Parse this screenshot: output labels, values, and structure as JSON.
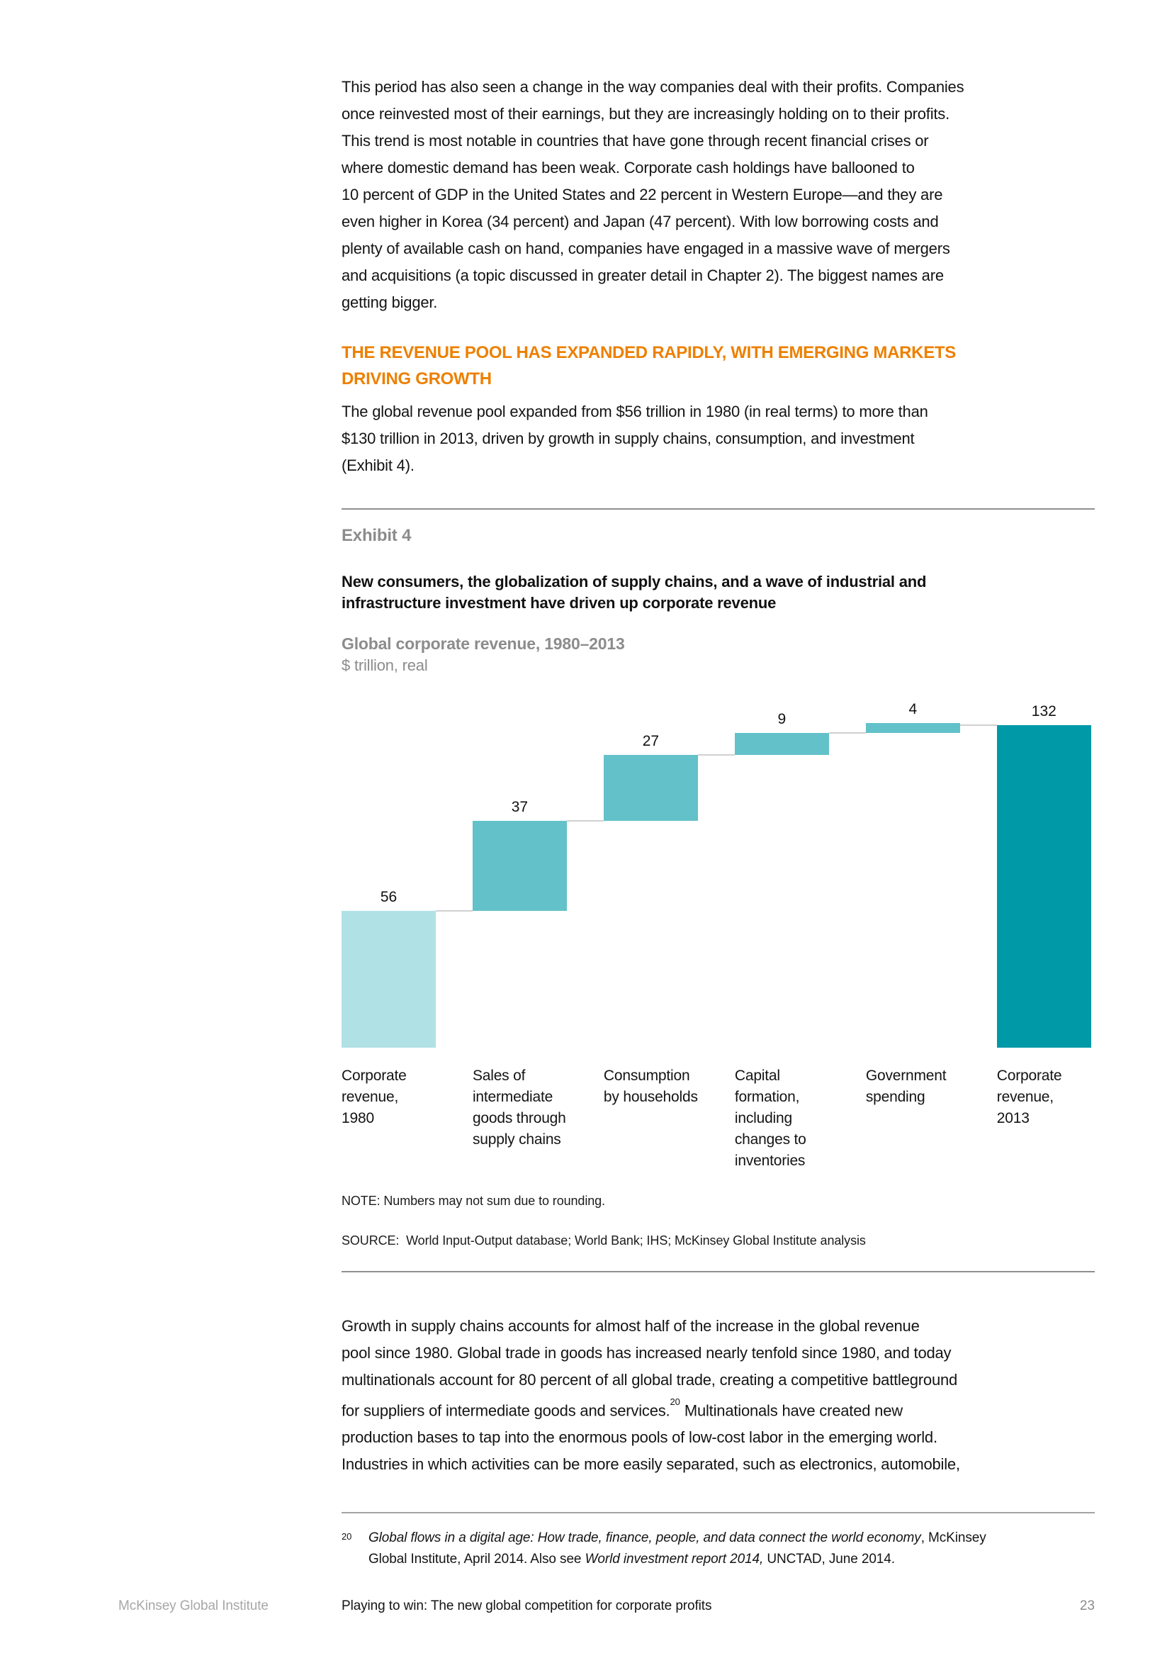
{
  "body": {
    "para1": "This period has also seen a change in the way companies deal with their profits. Companies\nonce reinvested most of their earnings, but they are increasingly holding on to their profits.\nThis trend is most notable in countries that have gone through recent financial crises or\nwhere domestic demand has been weak. Corporate cash holdings have ballooned to\n10 percent of GDP in the United States and 22 percent in Western Europe—and they are\neven higher in Korea (34 percent) and Japan (47 percent). With low borrowing costs and\nplenty of available cash on hand, companies have engaged in a massive wave of mergers\nand acquisitions (a topic discussed in greater detail in Chapter 2). The biggest names are\ngetting bigger.",
    "heading": "THE REVENUE POOL HAS EXPANDED RAPIDLY, WITH EMERGING MARKETS\nDRIVING GROWTH",
    "para2": "The global revenue pool expanded from $56 trillion in 1980 (in real terms) to more than\n$130 trillion in 2013, driven by growth in supply chains, consumption, and investment\n(Exhibit 4).",
    "para3_before": "Growth in supply chains accounts for almost half of the increase in the global revenue\npool since 1980. Global trade in goods has increased nearly tenfold since 1980, and today\nmultinationals account for 80 percent of all global trade, creating a competitive battleground\nfor suppliers of intermediate goods and services.",
    "para3_sup": "20",
    "para3_after": " Multinationals have created new\nproduction bases to tap into the enormous pools of low-cost labor in the emerging world.\nIndustries in which activities can be more easily separated, such as electronics, automobile,"
  },
  "exhibit": {
    "label": "Exhibit 4",
    "title": "New consumers, the globalization of supply chains, and a wave of industrial and\ninfrastructure investment have driven up corporate revenue",
    "subtitle_bold": "Global corporate revenue, 1980–2013",
    "subtitle_unit": "$ trillion, real",
    "note": "NOTE: Numbers may not sum due to rounding.",
    "source": "SOURCE:  World Input-Output database; World Bank; IHS; McKinsey Global Institute analysis"
  },
  "chart_data": {
    "type": "bar",
    "subtype": "waterfall",
    "title": "Global corporate revenue, 1980–2013",
    "ylabel": "$ trillion, real",
    "categories": [
      "Corporate\nrevenue,\n1980",
      "Sales of\nintermediate\ngoods through\nsupply chains",
      "Consumption\nby households",
      "Capital\nformation,\nincluding\nchanges to\ninventories",
      "Government\nspending",
      "Corporate\nrevenue,\n2013"
    ],
    "values": [
      56,
      37,
      27,
      9,
      4,
      132
    ],
    "kinds": [
      "total_start",
      "increment",
      "increment",
      "increment",
      "increment",
      "total_end"
    ],
    "cumulative_levels": [
      56,
      93,
      120,
      129,
      133,
      132
    ],
    "bar_colors": [
      "#b0e1e5",
      "#63c1c9",
      "#63c1c9",
      "#63c1c9",
      "#63c1c9",
      "#0099a8"
    ],
    "connector_color": "#d0d0d0",
    "value_label_color": "#111111",
    "ylim": [
      0,
      133
    ],
    "grid": false,
    "legend": false
  },
  "footnote": {
    "number": "20",
    "segments": [
      {
        "text": "Global flows in a digital age: How trade, finance, people, and data connect the world economy",
        "italic": true
      },
      {
        "text": ", McKinsey\nGlobal Institute, April 2014. Also see ",
        "italic": false
      },
      {
        "text": "World investment report 2014,",
        "italic": true
      },
      {
        "text": " UNCTAD, June 2014.",
        "italic": false
      }
    ]
  },
  "footer": {
    "brand": "McKinsey Global Institute",
    "report_title": "Playing to win: The new global competition for corporate profits",
    "page_number": "23"
  }
}
